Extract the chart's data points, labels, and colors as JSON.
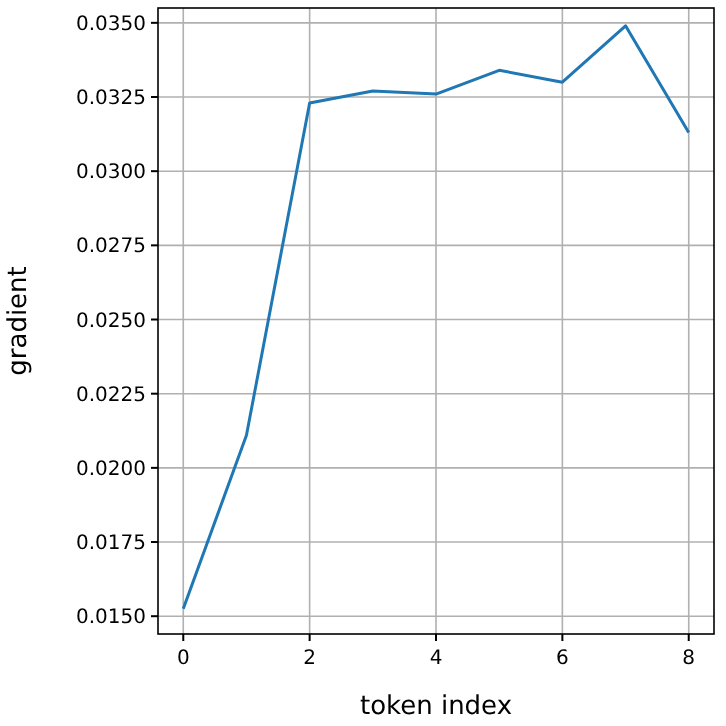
{
  "chart_data": {
    "type": "line",
    "xlabel": "token index",
    "ylabel": "gradient",
    "x": [
      0,
      1,
      2,
      3,
      4,
      5,
      6,
      7,
      8
    ],
    "series": [
      {
        "color": "#1f77b4",
        "values": [
          0.01525,
          0.0211,
          0.0323,
          0.0327,
          0.0326,
          0.0334,
          0.033,
          0.0349,
          0.0313
        ]
      }
    ],
    "xlim": [
      -0.4,
      8.4
    ],
    "xticks": [
      0,
      2,
      4,
      6,
      8
    ],
    "ylim": [
      0.0144,
      0.0355
    ],
    "yticks": [
      {
        "value": 0.015,
        "label": "0.0150"
      },
      {
        "value": 0.0175,
        "label": "0.0175"
      },
      {
        "value": 0.02,
        "label": "0.0200"
      },
      {
        "value": 0.0225,
        "label": "0.0225"
      },
      {
        "value": 0.025,
        "label": "0.0250"
      },
      {
        "value": 0.0275,
        "label": "0.0275"
      },
      {
        "value": 0.03,
        "label": "0.0300"
      },
      {
        "value": 0.0325,
        "label": "0.0325"
      },
      {
        "value": 0.035,
        "label": "0.0350"
      }
    ],
    "grid": true,
    "line_style": "solid"
  }
}
